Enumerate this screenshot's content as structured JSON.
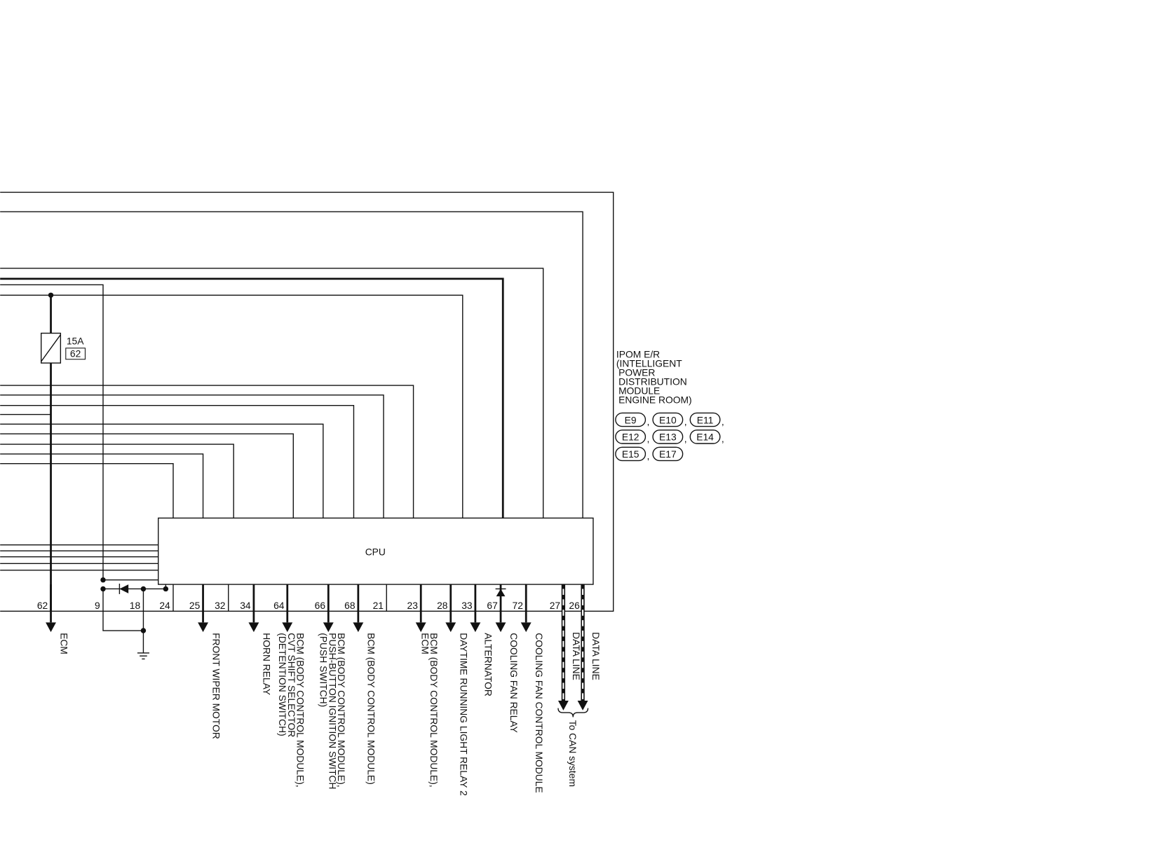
{
  "fuse": {
    "rating": "15A",
    "number": "62"
  },
  "module": {
    "label_lines": [
      "IPOM E/R",
      "(INTELLIGENT",
      "POWER",
      "DISTRIBUTION",
      "MODULE",
      "ENGINE ROOM)"
    ],
    "connectors": [
      "E9",
      "E10",
      "E11",
      "E12",
      "E13",
      "E14",
      "E15",
      "E17"
    ]
  },
  "cpu": "CPU",
  "pins": [
    {
      "number": "62",
      "label": [
        "ECM"
      ]
    },
    {
      "number": "9"
    },
    {
      "number": "18"
    },
    {
      "number": "24"
    },
    {
      "number": "25",
      "label": [
        "FRONT WIPER MOTOR"
      ]
    },
    {
      "number": "32"
    },
    {
      "number": "34",
      "label": [
        "HORN RELAY"
      ]
    },
    {
      "number": "64",
      "label": [
        "BCM (BODY CONTROL MODULE),",
        "CVT SHIFT SELECTOR",
        "(DETENTION SWITCH)"
      ]
    },
    {
      "number": "66",
      "label": [
        "BCM (BODY CONTROL MODULE),",
        "PUSH-BUTTON IGNITION SWITCH",
        "(PUSH SWITCH)"
      ]
    },
    {
      "number": "68",
      "label": [
        "BCM (BODY CONTROL MODULE)"
      ]
    },
    {
      "number": "21"
    },
    {
      "number": "23",
      "label": [
        "BCM (BODY CONTROL MODULE),",
        "ECM"
      ]
    },
    {
      "number": "28",
      "label": [
        "DAYTIME RUNNING LIGHT RELAY 2"
      ]
    },
    {
      "number": "33",
      "label": [
        "ALTERNATOR"
      ]
    },
    {
      "number": "67",
      "label": [
        "COOLING FAN RELAY"
      ]
    },
    {
      "number": "72",
      "label": [
        "COOLING FAN CONTROL MODULE"
      ]
    },
    {
      "number": "27",
      "label": [
        "DATA LINE"
      ]
    },
    {
      "number": "26",
      "label": [
        "DATA LINE"
      ]
    }
  ],
  "can_note": "To CAN system"
}
